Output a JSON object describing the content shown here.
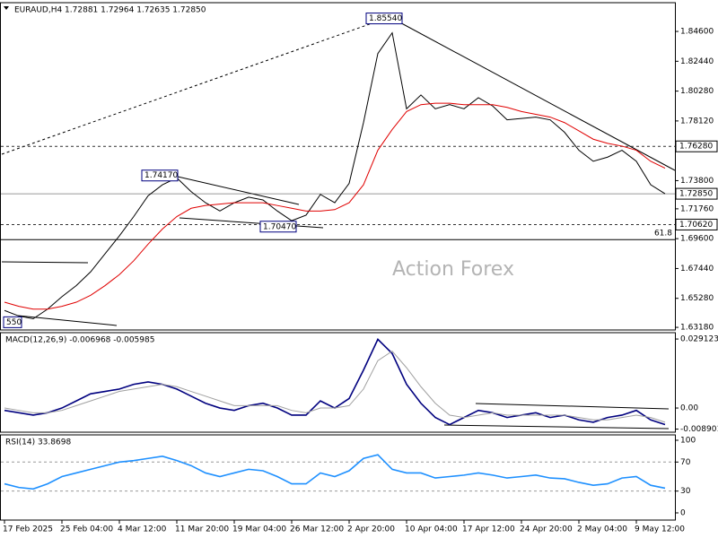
{
  "chart_data": [
    {
      "type": "line",
      "title": "EURAUD,H4  1.72881 1.72964 1.72635 1.72850",
      "watermark": "Action Forex",
      "ylim": [
        1.6299,
        1.8668
      ],
      "yticks": [
        {
          "value": 1.846,
          "label": "1.84600"
        },
        {
          "value": 1.8244,
          "label": "1.82440"
        },
        {
          "value": 1.8028,
          "label": "1.80280"
        },
        {
          "value": 1.7812,
          "label": "1.78120"
        },
        {
          "value": 1.738,
          "label": "1.73800"
        },
        {
          "value": 1.7176,
          "label": "1.71760"
        },
        {
          "value": 1.696,
          "label": "1.69600"
        },
        {
          "value": 1.6744,
          "label": "1.67440"
        },
        {
          "value": 1.6528,
          "label": "1.65280"
        },
        {
          "value": 1.6318,
          "label": "1.63180"
        }
      ],
      "levels": [
        {
          "value": 1.7628,
          "label": "1.76280"
        },
        {
          "value": 1.7285,
          "label": "1.72850"
        },
        {
          "value": 1.7062,
          "label": "1.70620"
        }
      ],
      "fib": {
        "value": 1.6953,
        "label": "61.8"
      },
      "annotations": [
        {
          "value": 1.8554,
          "label": "1.85540"
        },
        {
          "value": 1.7417,
          "label": "1.74170"
        },
        {
          "value": 1.7047,
          "label": "1.70470"
        },
        {
          "value": 1.6355,
          "label": "550"
        }
      ],
      "series": [
        {
          "color": "#000000",
          "values": [
            1.644,
            1.64,
            1.638,
            1.645,
            1.654,
            1.662,
            1.672,
            1.685,
            1.698,
            1.712,
            1.727,
            1.735,
            1.74,
            1.73,
            1.722,
            1.716,
            1.722,
            1.726,
            1.724,
            1.716,
            1.709,
            1.713,
            1.728,
            1.722,
            1.736,
            1.78,
            1.83,
            1.845,
            1.79,
            1.8,
            1.79,
            1.793,
            1.79,
            1.798,
            1.792,
            1.782,
            1.783,
            1.784,
            1.782,
            1.773,
            1.76,
            1.752,
            1.755,
            1.76,
            1.752,
            1.735,
            1.7285
          ]
        },
        {
          "color": "#e00000",
          "values": [
            1.65,
            1.647,
            1.645,
            1.645,
            1.647,
            1.65,
            1.655,
            1.662,
            1.67,
            1.68,
            1.692,
            1.703,
            1.712,
            1.718,
            1.72,
            1.721,
            1.722,
            1.722,
            1.722,
            1.72,
            1.718,
            1.716,
            1.716,
            1.717,
            1.722,
            1.735,
            1.76,
            1.775,
            1.788,
            1.793,
            1.794,
            1.794,
            1.793,
            1.793,
            1.793,
            1.791,
            1.788,
            1.786,
            1.784,
            1.78,
            1.774,
            1.768,
            1.765,
            1.763,
            1.76,
            1.752,
            1.747
          ]
        }
      ]
    },
    {
      "type": "line",
      "title": "MACD(12,26,9) -0.006968 -0.005985",
      "ylim": [
        -0.0102,
        0.0318
      ],
      "yticks": [
        0.029123,
        {
          "value": 0,
          "label": "0.00"
        },
        -0.008901
      ],
      "series": [
        {
          "color": "#00007f",
          "values": [
            -0.001,
            -0.002,
            -0.003,
            -0.002,
            0.0,
            0.003,
            0.006,
            0.007,
            0.008,
            0.01,
            0.011,
            0.01,
            0.008,
            0.005,
            0.002,
            0.0,
            -0.001,
            0.001,
            0.002,
            0.0,
            -0.003,
            -0.003,
            0.003,
            0.0,
            0.004,
            0.016,
            0.029,
            0.023,
            0.01,
            0.002,
            -0.004,
            -0.007,
            -0.004,
            -0.001,
            -0.002,
            -0.004,
            -0.003,
            -0.002,
            -0.004,
            -0.003,
            -0.005,
            -0.006,
            -0.004,
            -0.003,
            -0.001,
            -0.005,
            -0.007
          ]
        },
        {
          "color": "#a0a0a0",
          "values": [
            0.0,
            -0.001,
            -0.002,
            -0.002,
            -0.001,
            0.001,
            0.003,
            0.005,
            0.007,
            0.008,
            0.009,
            0.01,
            0.009,
            0.007,
            0.005,
            0.003,
            0.001,
            0.001,
            0.001,
            0.001,
            -0.001,
            -0.002,
            0.0,
            0.0,
            0.001,
            0.008,
            0.02,
            0.024,
            0.017,
            0.009,
            0.002,
            -0.003,
            -0.004,
            -0.003,
            -0.002,
            -0.003,
            -0.003,
            -0.003,
            -0.003,
            -0.003,
            -0.004,
            -0.005,
            -0.005,
            -0.004,
            -0.003,
            -0.004,
            -0.006
          ]
        }
      ]
    },
    {
      "type": "line",
      "title": "RSI(14) 33.8698",
      "ylim": [
        -9.9,
        107.4
      ],
      "yticks": [
        100,
        70,
        30,
        0
      ],
      "levels": [
        70,
        30
      ],
      "categories": [
        "17 Feb 2025",
        null,
        null,
        null,
        "25 Feb 04:00",
        null,
        null,
        null,
        "4 Mar 12:00",
        null,
        null,
        null,
        "11 Mar 20:00",
        null,
        null,
        null,
        "19 Mar 04:00",
        null,
        null,
        null,
        "26 Mar 12:00",
        null,
        null,
        null,
        "2 Apr 20:00",
        null,
        null,
        null,
        "10 Apr 04:00",
        null,
        null,
        null,
        "17 Apr 12:00",
        null,
        null,
        null,
        "24 Apr 20:00",
        null,
        null,
        null,
        "2 May 04:00",
        null,
        null,
        null,
        "9 May 12:00",
        null,
        null
      ],
      "series": [
        {
          "color": "#1e90ff",
          "values": [
            40,
            35,
            33,
            40,
            50,
            55,
            60,
            65,
            70,
            72,
            75,
            78,
            72,
            65,
            55,
            50,
            55,
            60,
            58,
            50,
            40,
            40,
            55,
            50,
            58,
            75,
            80,
            60,
            55,
            55,
            48,
            50,
            52,
            55,
            52,
            48,
            50,
            52,
            48,
            47,
            42,
            38,
            40,
            48,
            50,
            38,
            34
          ]
        }
      ]
    }
  ]
}
